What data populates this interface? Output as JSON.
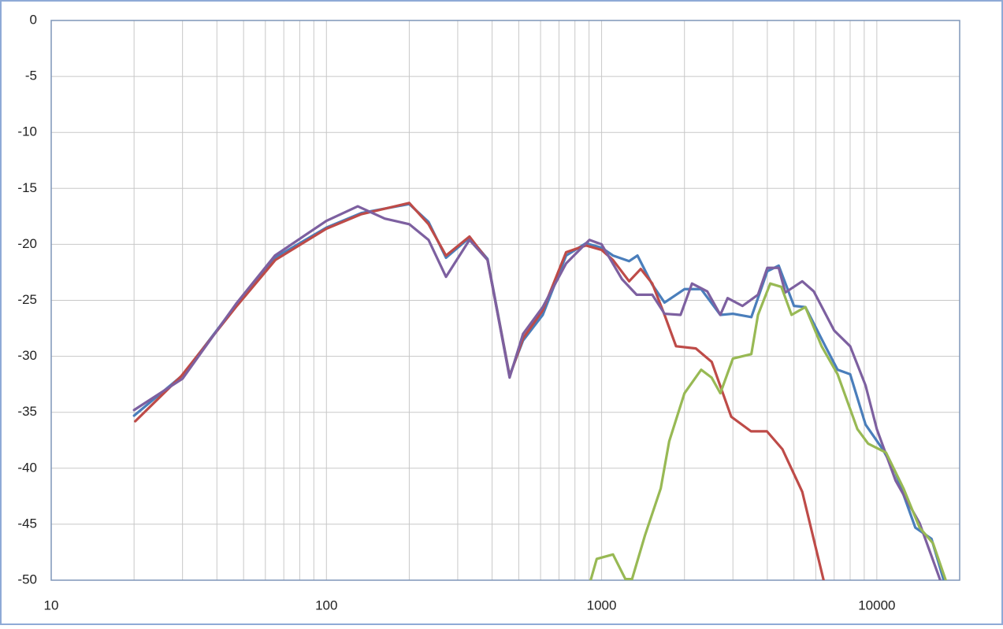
{
  "chart_data": {
    "type": "line",
    "xscale": "log",
    "grid": true,
    "xlim": [
      10,
      20000
    ],
    "xticks": [
      10,
      100,
      1000,
      10000
    ],
    "x_minor_ticks": [
      20,
      30,
      40,
      50,
      60,
      70,
      80,
      90,
      200,
      300,
      400,
      500,
      600,
      700,
      800,
      900,
      2000,
      3000,
      4000,
      5000,
      6000,
      7000,
      8000,
      9000
    ],
    "ylim": [
      -50,
      0
    ],
    "yticks": [
      0,
      -5,
      -10,
      -15,
      -20,
      -25,
      -30,
      -35,
      -40,
      -45,
      -50
    ],
    "series": [
      {
        "color": "#4a7ebb",
        "x": [
          20,
          30,
          47,
          65,
          100,
          134,
          200,
          235,
          272,
          331,
          385,
          463,
          518,
          611,
          743,
          877,
          1000,
          1100,
          1259,
          1350,
          1528,
          1693,
          2000,
          2300,
          2700,
          3000,
          3500,
          4000,
          4400,
          5000,
          5500,
          6500,
          7200,
          8000,
          9100,
          10500,
          11700,
          13800,
          15800,
          17500
        ],
        "values": [
          -35.3,
          -31.7,
          -25.4,
          -21.2,
          -18.5,
          -17.2,
          -16.4,
          -18.0,
          -21.2,
          -19.4,
          -21.3,
          -31.7,
          -28.6,
          -26.3,
          -21.0,
          -19.9,
          -20.3,
          -21.0,
          -21.5,
          -21.0,
          -23.6,
          -25.2,
          -24.0,
          -24.0,
          -26.3,
          -26.2,
          -26.5,
          -22.4,
          -21.9,
          -25.5,
          -25.6,
          -29.1,
          -31.2,
          -31.6,
          -36.1,
          -38.3,
          -40.4,
          -45.3,
          -46.3,
          -50
        ]
      },
      {
        "color": "#be4b48",
        "x": [
          20.2,
          29.6,
          46.9,
          65.2,
          100,
          134,
          200,
          235,
          272,
          331,
          385,
          463,
          518,
          611,
          743,
          877,
          1000,
          1100,
          1259,
          1387,
          1528,
          1693,
          1864,
          2200,
          2512,
          2958,
          3491,
          3987,
          4539,
          5358,
          6436
        ],
        "values": [
          -35.8,
          -31.8,
          -25.6,
          -21.4,
          -18.6,
          -17.3,
          -16.3,
          -18.2,
          -21.0,
          -19.3,
          -21.4,
          -31.8,
          -28.4,
          -25.9,
          -20.7,
          -20.1,
          -20.5,
          -21.4,
          -23.3,
          -22.2,
          -23.5,
          -26.3,
          -29.1,
          -29.3,
          -30.5,
          -35.4,
          -36.7,
          -36.7,
          -38.3,
          -42.1,
          -50.2
        ]
      },
      {
        "color": "#7d60a0",
        "x": [
          20,
          30,
          47,
          65,
          100,
          130,
          163,
          200,
          235,
          272,
          331,
          385,
          463,
          518,
          611,
          743,
          903,
          1000,
          1185,
          1340,
          1528,
          1693,
          1936,
          2130,
          2420,
          2700,
          2870,
          3250,
          3700,
          4000,
          4400,
          4650,
          5358,
          5900,
          7000,
          8000,
          9100,
          10000,
          11700,
          14300,
          17000
        ],
        "values": [
          -34.8,
          -32.0,
          -25.3,
          -21.0,
          -17.9,
          -16.6,
          -17.7,
          -18.2,
          -19.6,
          -22.9,
          -19.6,
          -21.4,
          -31.9,
          -28.0,
          -25.6,
          -21.7,
          -19.6,
          -20.0,
          -23.1,
          -24.5,
          -24.5,
          -26.2,
          -26.3,
          -23.5,
          -24.2,
          -26.3,
          -24.8,
          -25.5,
          -24.5,
          -22.1,
          -22.1,
          -24.3,
          -23.3,
          -24.2,
          -27.7,
          -29.1,
          -32.6,
          -36.5,
          -41.1,
          -44.9,
          -50
        ]
      },
      {
        "color": "#98b954",
        "x": [
          910,
          960,
          1100,
          1220,
          1290,
          1437,
          1640,
          1760,
          2000,
          2300,
          2510,
          2700,
          3000,
          3500,
          3700,
          4100,
          4500,
          4900,
          5500,
          6300,
          7200,
          8500,
          9300,
          10800,
          12500,
          14300,
          16000,
          17800
        ],
        "values": [
          -50.1,
          -48.1,
          -47.7,
          -49.9,
          -49.9,
          -46.0,
          -41.8,
          -37.6,
          -33.3,
          -31.2,
          -31.9,
          -33.3,
          -30.2,
          -29.8,
          -26.3,
          -23.5,
          -23.8,
          -26.3,
          -25.6,
          -29.1,
          -31.6,
          -36.5,
          -37.8,
          -38.6,
          -41.8,
          -45.3,
          -46.7,
          -50
        ]
      }
    ]
  }
}
